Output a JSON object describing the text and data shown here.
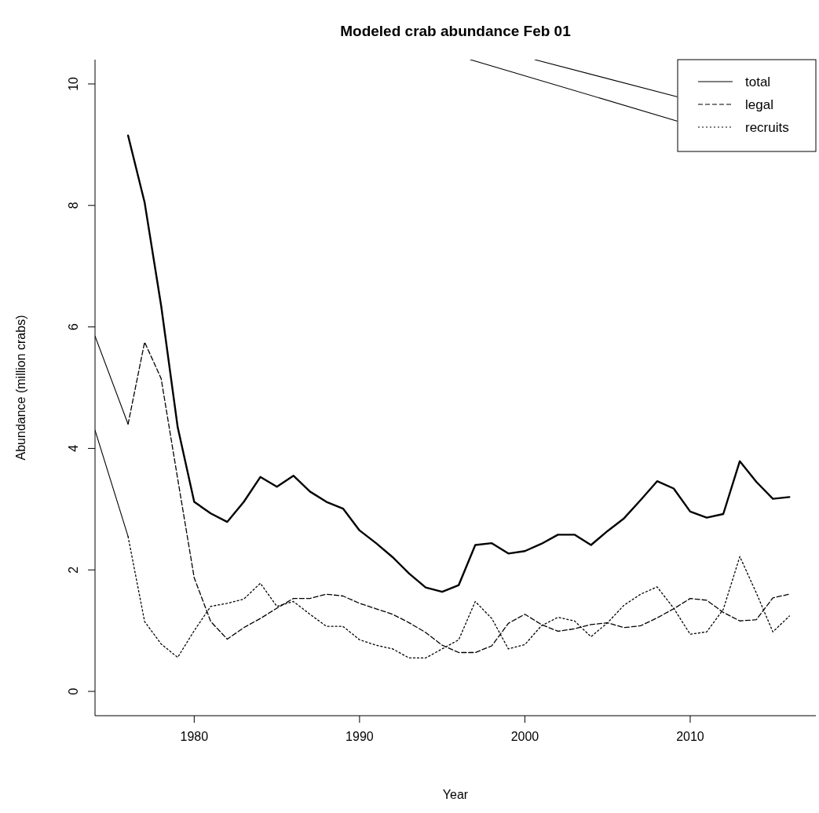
{
  "chart_data": {
    "type": "line",
    "title": "Modeled crab abundance Feb 01",
    "xlabel": "Year",
    "ylabel": "Abundance (million crabs)",
    "xlim": [
      1974,
      2017.6
    ],
    "xticks": [
      1980,
      1990,
      2000,
      2010
    ],
    "ylim": [
      -0.4,
      10.4
    ],
    "yticks": [
      0,
      2,
      4,
      6,
      8,
      10
    ],
    "grid": false,
    "legend": "top right",
    "series": [
      {
        "name": "total",
        "color": "#000000",
        "line_style": "solid",
        "x": [
          1976,
          1977,
          1978,
          1979,
          1980,
          1981,
          1982,
          1983,
          1984,
          1985,
          1986,
          1987,
          1988,
          1989,
          1990,
          1991,
          1992,
          1993,
          1994,
          1995,
          1996,
          1997,
          1998,
          1999,
          2000,
          2001,
          2002,
          2003,
          2004,
          2005,
          2006,
          2007,
          2008,
          2009,
          2010,
          2011,
          2012,
          2013,
          2014,
          2015,
          2016
        ],
        "values": [
          9.15,
          8.05,
          6.35,
          4.35,
          3.12,
          2.93,
          2.79,
          3.12,
          3.53,
          3.37,
          3.55,
          3.29,
          3.12,
          3.01,
          2.65,
          2.44,
          2.21,
          1.94,
          1.71,
          1.64,
          1.75,
          2.41,
          2.44,
          2.27,
          2.31,
          2.43,
          2.58,
          2.58,
          2.41,
          2.64,
          2.85,
          3.15,
          3.46,
          3.34,
          2.96,
          2.86,
          2.92,
          3.79,
          3.45,
          3.17,
          3.2
        ]
      },
      {
        "name": "legal",
        "color": "#000000",
        "line_style": "dashed",
        "x": [
          1976,
          1977,
          1978,
          1979,
          1980,
          1981,
          1982,
          1983,
          1984,
          1985,
          1986,
          1987,
          1988,
          1989,
          1990,
          1991,
          1992,
          1993,
          1994,
          1995,
          1996,
          1997,
          1998,
          1999,
          2000,
          2001,
          2002,
          2003,
          2004,
          2005,
          2006,
          2007,
          2008,
          2009,
          2010,
          2011,
          2012,
          2013,
          2014,
          2015,
          2016
        ],
        "values": [
          4.4,
          5.75,
          5.15,
          3.5,
          1.87,
          1.15,
          0.86,
          1.05,
          1.2,
          1.37,
          1.53,
          1.53,
          1.6,
          1.57,
          1.45,
          1.36,
          1.27,
          1.13,
          0.97,
          0.76,
          0.64,
          0.64,
          0.75,
          1.12,
          1.27,
          1.1,
          0.99,
          1.03,
          1.1,
          1.13,
          1.05,
          1.08,
          1.21,
          1.36,
          1.53,
          1.5,
          1.3,
          1.16,
          1.18,
          1.54,
          1.6
        ]
      },
      {
        "name": "recruits",
        "color": "#000000",
        "line_style": "dotted",
        "x": [
          1976,
          1977,
          1978,
          1979,
          1980,
          1981,
          1982,
          1983,
          1984,
          1985,
          1986,
          1987,
          1988,
          1989,
          1990,
          1991,
          1992,
          1993,
          1994,
          1995,
          1996,
          1997,
          1998,
          1999,
          2000,
          2001,
          2002,
          2003,
          2004,
          2005,
          2006,
          2007,
          2008,
          2009,
          2010,
          2011,
          2012,
          2013,
          2014,
          2015,
          2016
        ],
        "values": [
          2.55,
          1.15,
          0.78,
          0.56,
          1.0,
          1.4,
          1.45,
          1.52,
          1.78,
          1.4,
          1.48,
          1.27,
          1.07,
          1.07,
          0.85,
          0.76,
          0.7,
          0.55,
          0.55,
          0.7,
          0.85,
          1.48,
          1.2,
          0.7,
          0.77,
          1.08,
          1.22,
          1.16,
          0.9,
          1.13,
          1.42,
          1.6,
          1.72,
          1.37,
          0.94,
          0.98,
          1.35,
          2.22,
          1.62,
          0.98,
          1.24
        ]
      },
      {
        "color": "#000000",
        "line_style": "solid",
        "x": [
          1974,
          1976
        ],
        "values": [
          5.85,
          4.4
        ]
      },
      {
        "color": "#000000",
        "line_style": "solid",
        "x": [
          1974,
          1976
        ],
        "values": [
          4.3,
          2.55
        ]
      },
      {
        "color": "#000000",
        "line_style": "solid",
        "x": [
          1996.7,
          2009.2
        ],
        "values": [
          10.4,
          9.39
        ]
      },
      {
        "color": "#000000",
        "line_style": "solid",
        "x": [
          2000.6,
          2009.2
        ],
        "values": [
          10.4,
          9.79
        ]
      }
    ]
  }
}
